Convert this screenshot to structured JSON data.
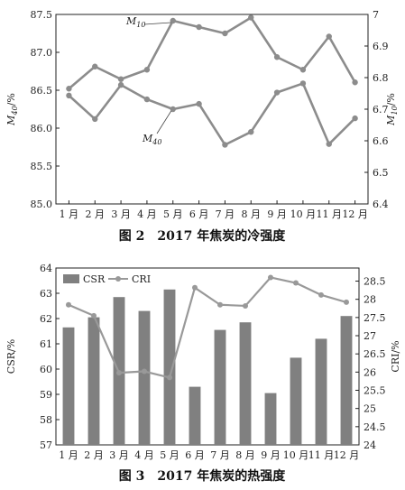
{
  "chart_data": [
    {
      "type": "line",
      "caption": "图 2　2017 年焦炭的冷强度",
      "categories": [
        "1 月",
        "2 月",
        "3 月",
        "4 月",
        "5 月",
        "6 月",
        "7 月",
        "8 月",
        "9 月",
        "10 月",
        "11 月",
        "12 月"
      ],
      "series": [
        {
          "name": "M40",
          "axis": "left",
          "values": [
            86.43,
            86.12,
            86.57,
            86.38,
            86.25,
            86.32,
            85.78,
            85.95,
            86.47,
            86.59,
            85.79,
            86.13
          ]
        },
        {
          "name": "M10",
          "axis": "right",
          "values": [
            6.765,
            6.835,
            6.795,
            6.825,
            6.98,
            6.96,
            6.94,
            6.99,
            6.865,
            6.825,
            6.93,
            6.785
          ]
        }
      ],
      "ylabel_left": {
        "main": "M",
        "sub": "40",
        "unit": "/%"
      },
      "ylabel_right": {
        "main": "M",
        "sub": "10",
        "unit": "/%"
      },
      "annotations": [
        {
          "main": "M",
          "sub": "10"
        },
        {
          "main": "M",
          "sub": "40"
        }
      ],
      "ylim_left": [
        85.0,
        87.5
      ],
      "yticks_left": [
        "85.0",
        "85.5",
        "86.0",
        "86.5",
        "87.0",
        "87.5"
      ],
      "ylim_right": [
        6.4,
        7.0
      ],
      "yticks_right": [
        "6.4",
        "6.5",
        "6.6",
        "6.7",
        "6.8",
        "6.9",
        "7"
      ],
      "color": "#8c8c8c",
      "grid": false
    },
    {
      "type": "bar+line",
      "caption": "图 3　2017 年焦炭的热强度",
      "categories": [
        "1 月",
        "2 月",
        "3 月",
        "4 月",
        "5 月",
        "6 月",
        "7 月",
        "8 月",
        "9 月",
        "10 月",
        "11 月",
        "12 月"
      ],
      "series": [
        {
          "name": "CSR",
          "type": "bar",
          "axis": "left",
          "values": [
            61.65,
            62.05,
            62.85,
            62.3,
            63.15,
            59.3,
            61.55,
            61.85,
            59.05,
            60.45,
            61.2,
            62.1
          ]
        },
        {
          "name": "CRI",
          "type": "line",
          "axis": "right",
          "values": [
            27.85,
            27.55,
            25.98,
            26.02,
            25.85,
            28.32,
            27.85,
            27.82,
            28.6,
            28.45,
            28.12,
            27.92
          ]
        }
      ],
      "ylabel_left": "CSR/%",
      "ylabel_right": "CRI/%",
      "ylim_left": [
        57,
        64
      ],
      "yticks_left": [
        "57",
        "58",
        "59",
        "60",
        "61",
        "62",
        "63",
        "64"
      ],
      "ylim_right": [
        24,
        28.86
      ],
      "yticks_right": [
        "24",
        "24.5",
        "25",
        "25.5",
        "26",
        "26.5",
        "27",
        "27.5",
        "28",
        "28.5"
      ],
      "legend": {
        "placement": "top-left",
        "items": [
          "CSR",
          "CRI"
        ]
      },
      "bar_color": "#808080",
      "line_color": "#999999",
      "grid": false
    }
  ]
}
